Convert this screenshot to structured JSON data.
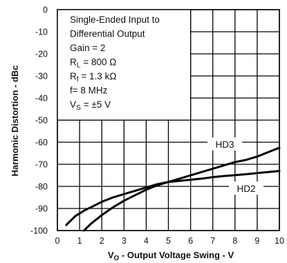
{
  "chart_data": {
    "type": "line",
    "xlabel_main": "V",
    "xlabel_sub": "O",
    "xlabel_rest": " - Output Voltage Swing - V",
    "ylabel": "Harmonic Distortion - dBc",
    "xlim": [
      0,
      10
    ],
    "ylim": [
      -100,
      0
    ],
    "x_ticks": [
      0,
      1,
      2,
      3,
      4,
      5,
      6,
      7,
      8,
      9,
      10
    ],
    "y_ticks": [
      0,
      -10,
      -20,
      -30,
      -40,
      -50,
      -60,
      -70,
      -80,
      -90,
      -100
    ],
    "grid": true,
    "annotation_lines": [
      {
        "text": "Single-Ended Input to"
      },
      {
        "text": "Differential Output"
      },
      {
        "text": "Gain = 2"
      },
      {
        "main": "R",
        "sub": "L",
        "rest": " = 800 Ω"
      },
      {
        "main": "R",
        "sub": "f",
        "rest": " = 1.3 kΩ"
      },
      {
        "text": "f= 8 MHz"
      },
      {
        "main": "V",
        "sub": "S",
        "rest": " = ±5 V"
      }
    ],
    "series": [
      {
        "name": "HD3",
        "x": [
          1.2,
          1.5,
          2.0,
          2.5,
          3.0,
          3.5,
          4.0,
          4.5,
          5.0,
          5.5,
          6.0,
          6.5,
          7.0,
          7.5,
          8.0,
          8.5,
          9.0,
          9.5,
          10.0
        ],
        "y": [
          -100,
          -97,
          -93,
          -89.5,
          -86.5,
          -84,
          -81.5,
          -79.5,
          -78,
          -76.5,
          -75,
          -73.5,
          -72,
          -70.5,
          -69,
          -68,
          -66.5,
          -64.5,
          -62.5
        ]
      },
      {
        "name": "HD2",
        "x": [
          0.4,
          0.8,
          1.2,
          1.6,
          2.0,
          2.5,
          3.0,
          3.5,
          4.0,
          4.5,
          5.0,
          5.5,
          6.0,
          6.5,
          7.0,
          7.5,
          8.0,
          8.5,
          9.0,
          9.5,
          10.0
        ],
        "y": [
          -97.5,
          -93.5,
          -91,
          -89,
          -87,
          -85,
          -83.5,
          -82,
          -80.5,
          -79,
          -78,
          -77.5,
          -77,
          -76.5,
          -75.8,
          -75.3,
          -74.9,
          -74.5,
          -74,
          -73.5,
          -73
        ]
      }
    ]
  }
}
